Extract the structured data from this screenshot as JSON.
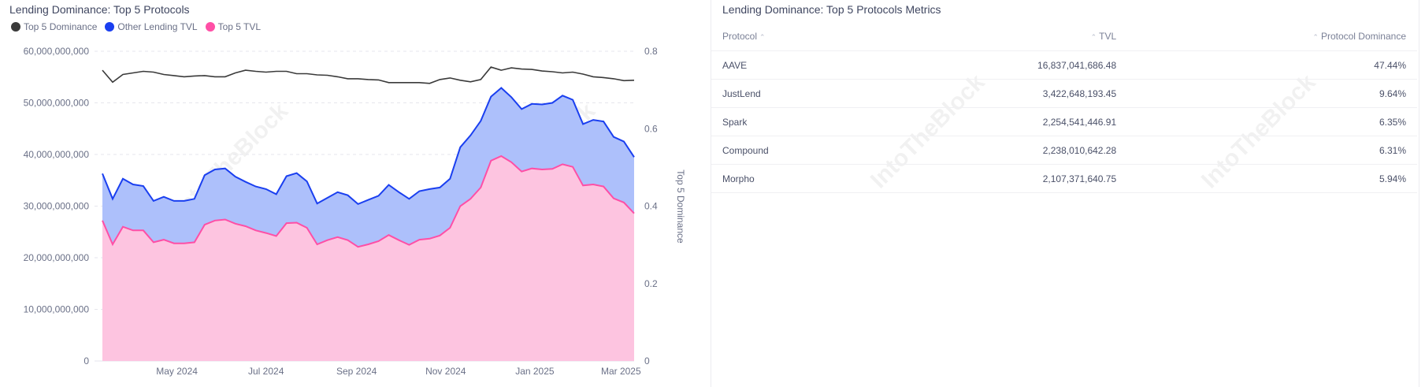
{
  "left_panel": {
    "title": "Lending Dominance: Top 5 Protocols",
    "legend": [
      {
        "label": "Top 5 Dominance",
        "color": "#3a3a3a"
      },
      {
        "label": "Other Lending TVL",
        "color": "#1a3ff0"
      },
      {
        "label": "Top 5 TVL",
        "color": "#ff4fa6"
      }
    ],
    "watermark": "IntoTheBlock"
  },
  "chart_data": {
    "type": "area",
    "stacked": true,
    "x": [
      "2024-03-11",
      "2024-03-18",
      "2024-03-25",
      "2024-04-01",
      "2024-04-08",
      "2024-04-15",
      "2024-04-22",
      "2024-04-29",
      "2024-05-06",
      "2024-05-13",
      "2024-05-20",
      "2024-05-27",
      "2024-06-03",
      "2024-06-10",
      "2024-06-17",
      "2024-06-24",
      "2024-07-01",
      "2024-07-08",
      "2024-07-15",
      "2024-07-22",
      "2024-07-29",
      "2024-08-05",
      "2024-08-12",
      "2024-08-19",
      "2024-08-26",
      "2024-09-02",
      "2024-09-09",
      "2024-09-16",
      "2024-09-23",
      "2024-09-30",
      "2024-10-07",
      "2024-10-14",
      "2024-10-21",
      "2024-10-28",
      "2024-11-04",
      "2024-11-11",
      "2024-11-18",
      "2024-11-25",
      "2024-12-02",
      "2024-12-09",
      "2024-12-16",
      "2024-12-23",
      "2024-12-30",
      "2025-01-06",
      "2025-01-13",
      "2025-01-20",
      "2025-01-27",
      "2025-02-03",
      "2025-02-10",
      "2025-02-17",
      "2025-02-24",
      "2025-03-03",
      "2025-03-10"
    ],
    "series": [
      {
        "name": "Top 5 TVL",
        "axis": "left",
        "color": "#ff4fa6",
        "fill": "#fdc4e0",
        "values": [
          27200000000.0,
          22600000000.0,
          26000000000.0,
          25300000000.0,
          25300000000.0,
          23000000000.0,
          23500000000.0,
          22800000000.0,
          22800000000.0,
          23000000000.0,
          26400000000.0,
          27200000000.0,
          27400000000.0,
          26600000000.0,
          26100000000.0,
          25300000000.0,
          24800000000.0,
          24200000000.0,
          26700000000.0,
          26800000000.0,
          25800000000.0,
          22600000000.0,
          23400000000.0,
          24000000000.0,
          23400000000.0,
          22100000000.0,
          22600000000.0,
          23200000000.0,
          24400000000.0,
          23400000000.0,
          22500000000.0,
          23500000000.0,
          23700000000.0,
          24300000000.0,
          25800000000.0,
          30000000000.0,
          31400000000.0,
          33600000000.0,
          38800000000.0,
          39700000000.0,
          38500000000.0,
          36700000000.0,
          37300000000.0,
          37100000000.0,
          37200000000.0,
          38100000000.0,
          37600000000.0,
          34000000000.0,
          34200000000.0,
          33800000000.0,
          31500000000.0,
          30700000000.0,
          28600000000.0
        ]
      },
      {
        "name": "Other Lending TVL",
        "axis": "left",
        "color": "#1a3ff0",
        "fill": "#adc0fb",
        "values": [
          9100000000.0,
          8800000000.0,
          9300000000.0,
          8900000000.0,
          8600000000.0,
          8000000000.0,
          8300000000.0,
          8200000000.0,
          8200000000.0,
          8400000000.0,
          9600000000.0,
          9900000000.0,
          9900000000.0,
          9100000000.0,
          8600000000.0,
          8500000000.0,
          8500000000.0,
          8100000000.0,
          9100000000.0,
          9600000000.0,
          9000000000.0,
          7900000000.0,
          8200000000.0,
          8700000000.0,
          8700000000.0,
          8300000000.0,
          8600000000.0,
          8800000000.0,
          9700000000.0,
          9300000000.0,
          8900000000.0,
          9400000000.0,
          9600000000.0,
          9300000000.0,
          9500000000.0,
          11400000000.0,
          12300000000.0,
          12900000000.0,
          12400000000.0,
          13200000000.0,
          12600000000.0,
          12100000000.0,
          12500000000.0,
          12600000000.0,
          12800000000.0,
          13300000000.0,
          13000000000.0,
          11900000000.0,
          12500000000.0,
          12600000000.0,
          11900000000.0,
          11800000000.0,
          10900000000.0
        ]
      },
      {
        "name": "Top 5 Dominance",
        "axis": "right",
        "type": "line",
        "color": "#3a3a3a",
        "values": [
          0.751,
          0.72,
          0.74,
          0.744,
          0.748,
          0.746,
          0.74,
          0.737,
          0.734,
          0.736,
          0.737,
          0.734,
          0.734,
          0.744,
          0.751,
          0.748,
          0.746,
          0.748,
          0.748,
          0.742,
          0.742,
          0.739,
          0.738,
          0.734,
          0.729,
          0.729,
          0.727,
          0.726,
          0.719,
          0.719,
          0.719,
          0.719,
          0.717,
          0.727,
          0.731,
          0.725,
          0.721,
          0.727,
          0.759,
          0.751,
          0.757,
          0.754,
          0.753,
          0.749,
          0.747,
          0.744,
          0.746,
          0.741,
          0.734,
          0.732,
          0.729,
          0.724,
          0.725
        ]
      }
    ],
    "x_ticks": [
      "May 2024",
      "Jul 2024",
      "Sep 2024",
      "Nov 2024",
      "Jan 2025",
      "Mar 2025"
    ],
    "y_left": {
      "ylim": [
        0,
        60000000000
      ],
      "ticks": [
        "0",
        "10,000,000,000",
        "20,000,000,000",
        "30,000,000,000",
        "40,000,000,000",
        "50,000,000,000",
        "60,000,000,000"
      ]
    },
    "y_right": {
      "label": "Top 5 Dominance",
      "ylim": [
        0,
        0.8
      ],
      "ticks": [
        "0",
        "0.2",
        "0.4",
        "0.6",
        "0.8"
      ]
    },
    "grid": true,
    "legend_position": "top-left"
  },
  "right_panel": {
    "title": "Lending Dominance: Top 5 Protocols Metrics",
    "columns": [
      "Protocol",
      "TVL",
      "Protocol Dominance"
    ],
    "rows": [
      [
        "AAVE",
        "16,837,041,686.48",
        "47.44%"
      ],
      [
        "JustLend",
        "3,422,648,193.45",
        "9.64%"
      ],
      [
        "Spark",
        "2,254,541,446.91",
        "6.35%"
      ],
      [
        "Compound",
        "2,238,010,642.28",
        "6.31%"
      ],
      [
        "Morpho",
        "2,107,371,640.75",
        "5.94%"
      ]
    ],
    "watermark": "IntoTheBlock"
  }
}
